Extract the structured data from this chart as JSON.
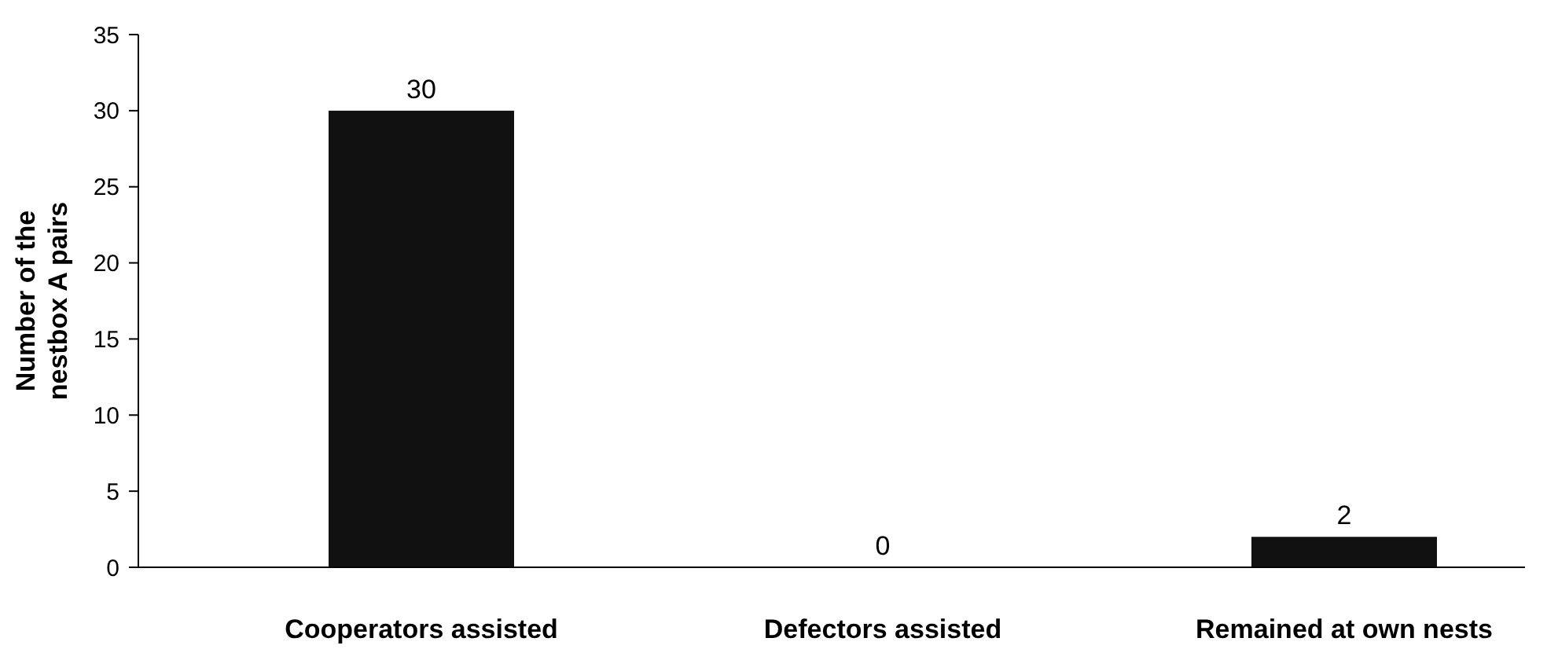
{
  "chart_data": {
    "type": "bar",
    "ylabel": "Number of the\nnestbox A pairs",
    "categories": [
      "Cooperators assisted",
      "Defectors assisted",
      "Remained at own nests"
    ],
    "values": [
      30,
      0,
      2
    ],
    "color": "#111111",
    "data_labels": true,
    "ylim": [
      0,
      35
    ],
    "yticks": [
      0,
      5,
      10,
      15,
      20,
      25,
      30,
      35
    ],
    "grid": false
  }
}
